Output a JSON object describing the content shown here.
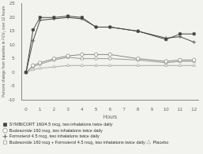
{
  "chart_data": {
    "type": "line",
    "xlabel": "Hours",
    "ylabel": "Percent change from baseline in FEV₁ over 12 hours",
    "x": [
      0,
      0.5,
      1,
      2,
      3,
      4,
      5,
      6,
      8,
      10,
      11,
      12
    ],
    "xlim": [
      -0.3,
      12.3
    ],
    "xticks": [
      0,
      1,
      2,
      3,
      4,
      5,
      6,
      7,
      8,
      9,
      10,
      11,
      12
    ],
    "ylim": [
      -10,
      25
    ],
    "yticks": [
      -10,
      -5,
      0,
      5,
      10,
      15,
      20,
      25
    ],
    "grid": false,
    "legend": "bottom",
    "series": [
      {
        "name": "SYMBICORT 160/4.5 mcg, two inhalations twice daily",
        "color": "#444444",
        "marker": "square",
        "line_style": "solid",
        "values": [
          0,
          15.5,
          20.0,
          20.0,
          20.5,
          20.0,
          16.5,
          16.5,
          15.0,
          12.0,
          14.0,
          14.0
        ]
      },
      {
        "name": "Budesonide 160 mcg, two inhalations twice daily",
        "color": "#888888",
        "marker": "circle-open",
        "line_style": "solid",
        "values": [
          0,
          2.5,
          3.5,
          5.0,
          6.0,
          6.5,
          6.5,
          6.5,
          5.0,
          4.0,
          4.5,
          4.5
        ]
      },
      {
        "name": "Formoterol 4.5 mcg, two inhalations twice daily",
        "color": "#444444",
        "marker": "plus",
        "line_style": "solid",
        "values": [
          0,
          11.5,
          19.0,
          19.5,
          20.0,
          19.5,
          16.5,
          16.5,
          15.0,
          12.5,
          13.0,
          11.0
        ]
      },
      {
        "name": "Budesonide 160 mcg + Formoterol 4.5 mcg, two inhalations twice daily",
        "color": "#999999",
        "marker": "square-open",
        "line_style": "solid",
        "values": [
          0,
          2.0,
          3.0,
          4.5,
          5.5,
          5.0,
          5.0,
          5.0,
          4.5,
          3.5,
          4.0,
          4.0
        ]
      },
      {
        "name": "Placebo",
        "color": "#aaaaaa",
        "marker": "triangle-open",
        "line_style": "solid",
        "values": [
          0,
          1.0,
          1.5,
          2.0,
          2.5,
          2.5,
          2.5,
          2.5,
          2.5,
          2.5,
          2.5,
          2.5
        ]
      }
    ]
  }
}
